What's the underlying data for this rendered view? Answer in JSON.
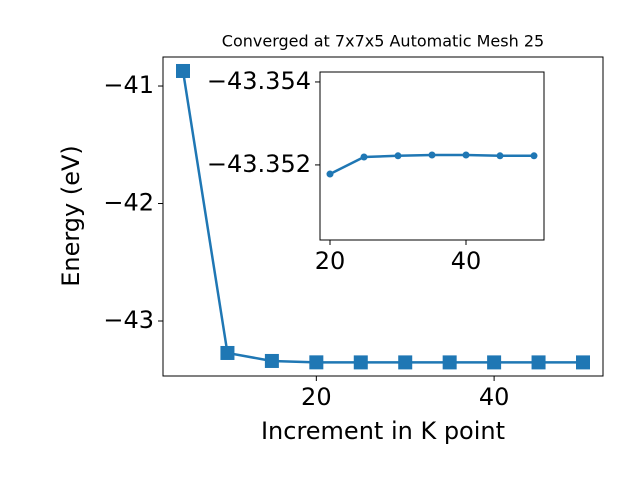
{
  "chart_data": [
    {
      "type": "line",
      "title": "Converged at 7x7x5 Automatic Mesh 25",
      "x_label": "Increment in K point",
      "y_label": "Energy (eV)",
      "x": [
        5,
        10,
        15,
        20,
        25,
        30,
        35,
        40,
        45,
        50
      ],
      "series": [
        {
          "name": "Energy",
          "color": "#1f77b4",
          "marker": "square",
          "values": [
            -40.872,
            -43.272,
            -43.34,
            -43.3518,
            -43.3522,
            -43.3522,
            -43.3522,
            -43.3522,
            -43.3522,
            -43.3522
          ]
        }
      ],
      "xlim": [
        2.75,
        52.25
      ],
      "xticks": [
        20,
        40
      ],
      "ylim": [
        -43.468,
        -40.753
      ],
      "yticks": [
        {
          "value": -43,
          "label": "−43"
        },
        {
          "value": -42,
          "label": "−42"
        },
        {
          "value": -41,
          "label": "−41"
        }
      ]
    },
    {
      "type": "line",
      "x": [
        20,
        25,
        30,
        35,
        40,
        45,
        50
      ],
      "series": [
        {
          "name": "Energy",
          "color": "#1f77b4",
          "marker": "circle",
          "values": [
            -43.35178,
            -43.35219,
            -43.35222,
            -43.35224,
            -43.35224,
            -43.35222,
            -43.35222
          ]
        }
      ],
      "xlim": [
        18.53,
        51.47
      ],
      "xticks": [
        20,
        40
      ],
      "ylim": [
        -43.35019,
        -43.35424
      ],
      "yticks": [
        {
          "value": -43.354,
          "label": "−43.354"
        },
        {
          "value": -43.352,
          "label": "−43.352"
        }
      ]
    }
  ]
}
